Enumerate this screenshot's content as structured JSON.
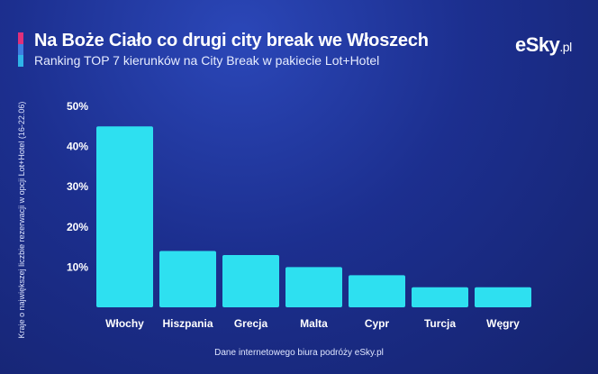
{
  "header": {
    "title": "Na Boże Ciało co drugi city break we Włoszech",
    "subtitle": "Ranking TOP 7 kierunków na City Break w pakiecie Lot+Hotel",
    "logo_main": "eSky",
    "logo_suffix": ".pl"
  },
  "footer": {
    "source": "Dane internetowego biura podróży eSky.pl"
  },
  "colors": {
    "bar": "#2ee0f0",
    "accent_pink": "#e0307a",
    "accent_blue": "#3e7de0",
    "accent_cyan": "#2fb4e8"
  },
  "chart_data": {
    "type": "bar",
    "title": "Na Boże Ciało co drugi city break we Włoszech",
    "subtitle": "Ranking TOP 7 kierunków na City Break w pakiecie Lot+Hotel",
    "xlabel": "",
    "ylabel": "Kraje o największej liczbie rezerwacji w opcji Lot+Hotel (16-22.06)",
    "categories": [
      "Włochy",
      "Hiszpania",
      "Grecja",
      "Malta",
      "Cypr",
      "Turcja",
      "Węgry"
    ],
    "values": [
      45,
      14,
      13,
      10,
      8,
      5,
      5
    ],
    "ylim": [
      0,
      50
    ],
    "yticks": [
      10,
      20,
      30,
      40,
      50
    ],
    "ytick_labels": [
      "10%",
      "20%",
      "30%",
      "40%",
      "50%"
    ],
    "grid": false
  }
}
